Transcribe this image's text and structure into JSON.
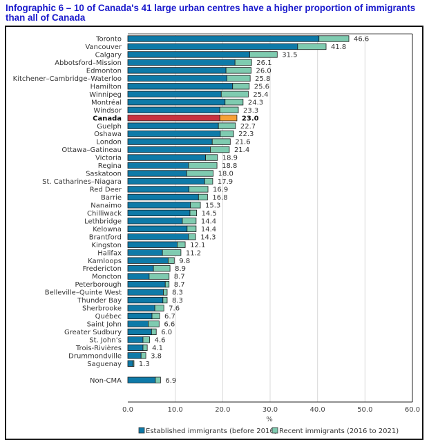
{
  "title": "Infographic 6 –  10 of Canada's 41 large urban centres have a higher proportion of immigrants than all of Canada",
  "chart_data": {
    "type": "bar",
    "orientation": "horizontal",
    "stacked": true,
    "title": "Infographic 6 –  10 of Canada's 41 large urban centres have a higher proportion of immigrants than all of Canada",
    "xlabel": "%",
    "ylabel": "",
    "xlim": [
      0,
      60
    ],
    "xticks": [
      "0.0",
      "10.0",
      "20.0",
      "30.0",
      "40.0",
      "50.0",
      "60.0"
    ],
    "grid": "vertical",
    "legend_position": "bottom",
    "colors": {
      "established": "#0e7aa8",
      "recent": "#7fcbb0",
      "canada_established": "#c8323f",
      "canada_recent": "#f7a036",
      "bar_outline": "#1a1a1a",
      "gridline": "#d9d9d9"
    },
    "categories": [
      "Toronto",
      "Vancouver",
      "Calgary",
      "Abbotsford–Mission",
      "Edmonton",
      "Kitchener–Cambridge–Waterloo",
      "Hamilton",
      "Winnipeg",
      "Montréal",
      "Windsor",
      "Canada",
      "Guelph",
      "Oshawa",
      "London",
      "Ottawa–Gatineau",
      "Victoria",
      "Regina",
      "Saskatoon",
      "St. Catharines–Niagara",
      "Red Deer",
      "Barrie",
      "Nanaimo",
      "Chilliwack",
      "Lethbridge",
      "Kelowna",
      "Brantford",
      "Kingston",
      "Halifax",
      "Kamloops",
      "Fredericton",
      "Moncton",
      "Peterborough",
      "Belleville–Quinte West",
      "Thunder Bay",
      "Sherbrooke",
      "Québec",
      "Saint John",
      "Greater Sudbury",
      "St. John’s",
      "Trois-Rivières",
      "Drummondville",
      "Saguenay",
      "Non-CMA"
    ],
    "highlight_category": "Canada",
    "gap_before": "Non-CMA",
    "series": [
      {
        "name": "Established immigrants (before 2016)",
        "values": [
          40.3,
          35.8,
          25.7,
          22.6,
          20.7,
          20.9,
          22.1,
          19.7,
          20.5,
          19.4,
          19.4,
          19.1,
          19.5,
          17.8,
          17.4,
          16.4,
          12.8,
          12.4,
          16.2,
          12.9,
          14.9,
          13.2,
          13.1,
          11.5,
          12.5,
          12.8,
          10.4,
          7.3,
          8.5,
          5.4,
          4.5,
          7.9,
          7.5,
          7.4,
          5.7,
          5.1,
          4.3,
          5.0,
          3.2,
          3.2,
          2.8,
          1.1,
          5.8
        ]
      },
      {
        "name": "Recent immigrants (2016 to 2021)",
        "values": [
          6.3,
          6.0,
          5.8,
          3.5,
          5.3,
          4.9,
          3.5,
          5.7,
          3.8,
          3.9,
          3.6,
          3.6,
          2.8,
          3.8,
          4.0,
          2.5,
          6.0,
          5.6,
          1.7,
          4.0,
          1.9,
          2.1,
          1.4,
          2.9,
          1.9,
          1.5,
          1.7,
          3.9,
          1.3,
          3.5,
          4.2,
          0.8,
          0.8,
          0.9,
          1.9,
          1.6,
          2.3,
          1.0,
          1.4,
          0.9,
          1.0,
          0.2,
          1.1
        ]
      }
    ],
    "totals": [
      46.6,
      41.8,
      31.5,
      26.1,
      26.0,
      25.8,
      25.6,
      25.4,
      24.3,
      23.3,
      23.0,
      22.7,
      22.3,
      21.6,
      21.4,
      18.9,
      18.8,
      18.0,
      17.9,
      16.9,
      16.8,
      15.3,
      14.5,
      14.4,
      14.4,
      14.3,
      12.1,
      11.2,
      9.8,
      8.9,
      8.7,
      8.7,
      8.3,
      8.3,
      7.6,
      6.7,
      6.6,
      6.0,
      4.6,
      4.1,
      3.8,
      1.3,
      6.9
    ],
    "total_labels": [
      "46.6",
      "41.8",
      "31.5",
      "26.1",
      "26.0",
      "25.8",
      "25.6",
      "25.4",
      "24.3",
      "23.3",
      "23.0",
      "22.7",
      "22.3",
      "21.6",
      "21.4",
      "18.9",
      "18.8",
      "18.0",
      "17.9",
      "16.9",
      "16.8",
      "15.3",
      "14.5",
      "14.4",
      "14.4",
      "14.3",
      "12.1",
      "11.2",
      "9.8",
      "8.9",
      "8.7",
      "8.7",
      "8.3",
      "8.3",
      "7.6",
      "6.7",
      "6.6",
      "6.0",
      "4.6",
      "4.1",
      "3.8",
      "1.3",
      "6.9"
    ],
    "legend": [
      {
        "label": "Established immigrants (before 2016)",
        "color": "#0e7aa8"
      },
      {
        "label": "Recent immigrants (2016 to 2021)",
        "color": "#7fcbb0"
      }
    ]
  }
}
